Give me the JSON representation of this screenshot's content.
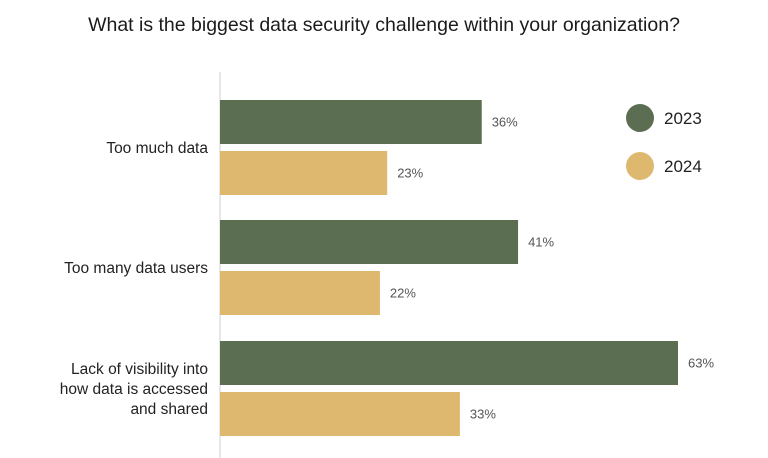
{
  "chart_data": {
    "type": "bar",
    "orientation": "horizontal",
    "title": "What is the biggest data security challenge within your organization?",
    "categories": [
      [
        "Too much data"
      ],
      [
        "Too many data users"
      ],
      [
        "Lack of visibility into",
        "how data is accessed",
        "and shared"
      ]
    ],
    "series": [
      {
        "name": "2023",
        "color": "#5c6e52",
        "values": [
          36,
          41,
          63
        ],
        "labels": [
          "36%",
          "41%",
          "63%"
        ]
      },
      {
        "name": "2024",
        "color": "#dfb86f",
        "values": [
          23,
          22,
          33
        ],
        "labels": [
          "23%",
          "22%",
          "33%"
        ]
      }
    ],
    "xlim": [
      0,
      70
    ],
    "legend_position": "top-right",
    "grid": false
  }
}
